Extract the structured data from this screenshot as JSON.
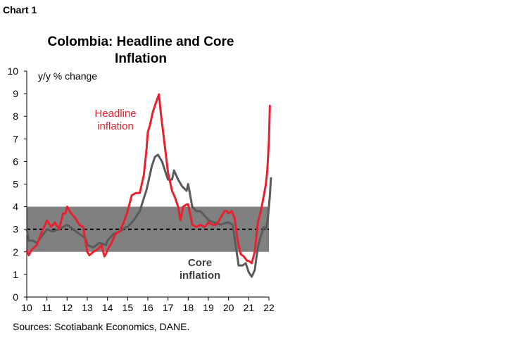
{
  "header": {
    "chart_label": "Chart 1"
  },
  "footer": {
    "source": "Sources: Scotiabank Economics, DANE."
  },
  "colors": {
    "headline": "#e8202f",
    "core": "#5a5a5a",
    "target_band": "#808080",
    "target_line": "#000000"
  },
  "chart_data": {
    "type": "line",
    "title": "Colombia: Headline and Core Inflation",
    "ylabel": "y/y % change",
    "xlabel": "",
    "ylim": [
      0,
      10
    ],
    "xlim": [
      2010,
      2022.0
    ],
    "yticks": [
      "0",
      "1",
      "2",
      "3",
      "4",
      "5",
      "6",
      "7",
      "8",
      "9",
      "10"
    ],
    "xticks": [
      "10",
      "11",
      "12",
      "13",
      "14",
      "15",
      "16",
      "17",
      "18",
      "19",
      "20",
      "21",
      "22"
    ],
    "target_band": [
      2,
      4
    ],
    "target_line": 3,
    "grid": false,
    "annotations": [
      {
        "text": "Headline",
        "series": "headline"
      },
      {
        "text": "inflation",
        "series": "headline"
      },
      {
        "text": "Core",
        "series": "core"
      },
      {
        "text": "inflation",
        "series": "core"
      }
    ],
    "series": [
      {
        "key": "headline",
        "points": [
          [
            2010.0,
            2.1
          ],
          [
            2010.1,
            1.85
          ],
          [
            2010.25,
            2.1
          ],
          [
            2010.5,
            2.3
          ],
          [
            2010.75,
            2.9
          ],
          [
            2010.92,
            3.2
          ],
          [
            2011.0,
            3.4
          ],
          [
            2011.2,
            3.1
          ],
          [
            2011.4,
            3.3
          ],
          [
            2011.6,
            3.0
          ],
          [
            2011.8,
            3.7
          ],
          [
            2011.92,
            3.7
          ],
          [
            2012.0,
            4.0
          ],
          [
            2012.2,
            3.7
          ],
          [
            2012.4,
            3.5
          ],
          [
            2012.6,
            3.2
          ],
          [
            2012.8,
            3.1
          ],
          [
            2012.92,
            2.4
          ],
          [
            2013.0,
            2.0
          ],
          [
            2013.1,
            1.85
          ],
          [
            2013.3,
            2.0
          ],
          [
            2013.5,
            2.1
          ],
          [
            2013.7,
            2.3
          ],
          [
            2013.85,
            1.8
          ],
          [
            2013.95,
            1.95
          ],
          [
            2014.0,
            2.1
          ],
          [
            2014.2,
            2.4
          ],
          [
            2014.4,
            2.8
          ],
          [
            2014.6,
            2.9
          ],
          [
            2014.8,
            3.3
          ],
          [
            2014.92,
            3.6
          ],
          [
            2015.0,
            3.8
          ],
          [
            2015.2,
            4.5
          ],
          [
            2015.4,
            4.6
          ],
          [
            2015.6,
            4.6
          ],
          [
            2015.8,
            5.4
          ],
          [
            2015.92,
            6.4
          ],
          [
            2016.0,
            7.3
          ],
          [
            2016.1,
            7.6
          ],
          [
            2016.25,
            8.2
          ],
          [
            2016.4,
            8.6
          ],
          [
            2016.55,
            8.97
          ],
          [
            2016.65,
            8.1
          ],
          [
            2016.8,
            7.0
          ],
          [
            2016.92,
            6.1
          ],
          [
            2017.0,
            5.5
          ],
          [
            2017.2,
            4.7
          ],
          [
            2017.35,
            4.4
          ],
          [
            2017.5,
            4.0
          ],
          [
            2017.62,
            3.4
          ],
          [
            2017.75,
            4.0
          ],
          [
            2017.92,
            4.1
          ],
          [
            2018.0,
            4.1
          ],
          [
            2018.2,
            3.2
          ],
          [
            2018.4,
            3.1
          ],
          [
            2018.6,
            3.2
          ],
          [
            2018.8,
            3.1
          ],
          [
            2018.92,
            3.2
          ],
          [
            2019.0,
            3.3
          ],
          [
            2019.2,
            3.2
          ],
          [
            2019.4,
            3.2
          ],
          [
            2019.6,
            3.5
          ],
          [
            2019.8,
            3.8
          ],
          [
            2019.92,
            3.8
          ],
          [
            2020.0,
            3.7
          ],
          [
            2020.15,
            3.8
          ],
          [
            2020.3,
            3.5
          ],
          [
            2020.45,
            2.5
          ],
          [
            2020.6,
            1.9
          ],
          [
            2020.75,
            1.8
          ],
          [
            2020.92,
            1.6
          ],
          [
            2021.0,
            1.6
          ],
          [
            2021.15,
            1.5
          ],
          [
            2021.3,
            2.0
          ],
          [
            2021.45,
            3.3
          ],
          [
            2021.6,
            3.8
          ],
          [
            2021.75,
            4.5
          ],
          [
            2021.85,
            5.0
          ],
          [
            2021.92,
            5.6
          ],
          [
            2022.0,
            6.9
          ],
          [
            2022.05,
            8.5
          ]
        ]
      },
      {
        "key": "core",
        "points": [
          [
            2010.0,
            3.0
          ],
          [
            2010.1,
            2.5
          ],
          [
            2010.3,
            2.5
          ],
          [
            2010.5,
            2.4
          ],
          [
            2010.75,
            2.7
          ],
          [
            2010.92,
            2.9
          ],
          [
            2011.0,
            3.0
          ],
          [
            2011.3,
            2.9
          ],
          [
            2011.6,
            3.0
          ],
          [
            2011.8,
            3.1
          ],
          [
            2012.0,
            3.2
          ],
          [
            2012.3,
            3.0
          ],
          [
            2012.6,
            2.8
          ],
          [
            2012.92,
            2.6
          ],
          [
            2013.0,
            2.3
          ],
          [
            2013.3,
            2.2
          ],
          [
            2013.6,
            2.4
          ],
          [
            2013.92,
            2.3
          ],
          [
            2014.0,
            2.5
          ],
          [
            2014.3,
            2.8
          ],
          [
            2014.6,
            2.9
          ],
          [
            2014.92,
            3.1
          ],
          [
            2015.0,
            3.1
          ],
          [
            2015.3,
            3.4
          ],
          [
            2015.6,
            3.8
          ],
          [
            2015.92,
            4.7
          ],
          [
            2016.0,
            5.0
          ],
          [
            2016.2,
            5.8
          ],
          [
            2016.35,
            6.2
          ],
          [
            2016.5,
            6.3
          ],
          [
            2016.7,
            6.0
          ],
          [
            2016.92,
            5.4
          ],
          [
            2017.0,
            5.2
          ],
          [
            2017.2,
            5.2
          ],
          [
            2017.3,
            5.6
          ],
          [
            2017.5,
            5.2
          ],
          [
            2017.7,
            4.9
          ],
          [
            2017.92,
            4.7
          ],
          [
            2018.0,
            5.0
          ],
          [
            2018.2,
            4.0
          ],
          [
            2018.4,
            3.8
          ],
          [
            2018.6,
            3.8
          ],
          [
            2018.92,
            3.5
          ],
          [
            2019.0,
            3.4
          ],
          [
            2019.3,
            3.3
          ],
          [
            2019.6,
            3.2
          ],
          [
            2019.92,
            3.3
          ],
          [
            2020.0,
            3.3
          ],
          [
            2020.2,
            3.2
          ],
          [
            2020.35,
            2.3
          ],
          [
            2020.5,
            1.4
          ],
          [
            2020.7,
            1.4
          ],
          [
            2020.85,
            1.5
          ],
          [
            2021.0,
            1.1
          ],
          [
            2021.15,
            0.9
          ],
          [
            2021.3,
            1.2
          ],
          [
            2021.45,
            2.2
          ],
          [
            2021.6,
            2.7
          ],
          [
            2021.75,
            3.1
          ],
          [
            2021.85,
            3.0
          ],
          [
            2021.95,
            3.5
          ],
          [
            2022.05,
            4.5
          ],
          [
            2022.1,
            5.3
          ]
        ]
      }
    ]
  }
}
